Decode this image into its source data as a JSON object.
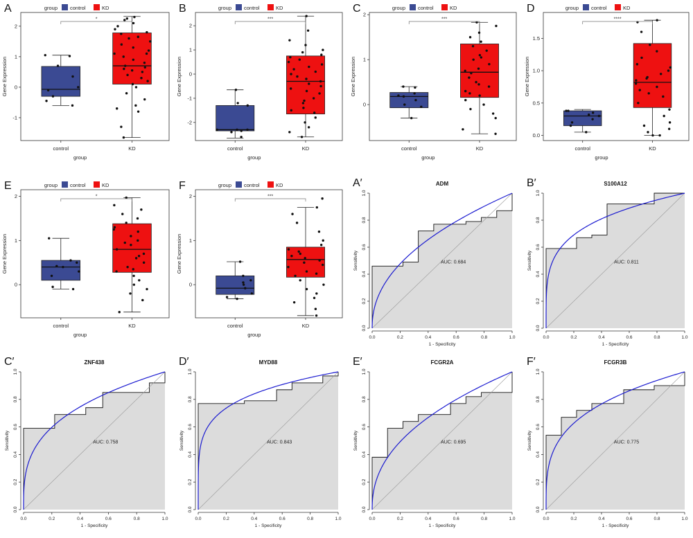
{
  "legend": {
    "title": "group",
    "items": [
      {
        "label": "control",
        "color": "#3B4A93"
      },
      {
        "label": "KD",
        "color": "#EE1111"
      }
    ]
  },
  "chart_data": [
    {
      "id": "A",
      "panel_label": "A",
      "type": "box",
      "title": "",
      "xlabel": "group",
      "ylabel": "Gene Expression",
      "categories": [
        "control",
        "KD"
      ],
      "ylim": [
        -1.75,
        2.45
      ],
      "yticks": [
        -1,
        0,
        1,
        2
      ],
      "significance": "*",
      "boxes": [
        {
          "min": -0.6,
          "q1": -0.3,
          "median": -0.07,
          "q3": 0.68,
          "max": 1.05,
          "color": "#3B4A93"
        },
        {
          "min": -1.65,
          "q1": 0.1,
          "median": 0.7,
          "q3": 1.78,
          "max": 2.32,
          "color": "#EE1111"
        }
      ],
      "points": [
        [
          1.02,
          1.05,
          0.7,
          0.35,
          -0.1,
          -0.6,
          -0.45,
          0.0,
          -0.3
        ],
        [
          2.3,
          2.25,
          2.2,
          2.1,
          2.0,
          1.9,
          1.8,
          1.75,
          1.6,
          1.5,
          1.4,
          1.3,
          1.2,
          1.1,
          1.0,
          0.9,
          0.8,
          0.7,
          0.65,
          0.6,
          0.5,
          0.4,
          0.3,
          0.2,
          0.1,
          0.0,
          -0.2,
          -0.4,
          -0.6,
          -0.7,
          -0.8,
          -1.3,
          -1.65,
          1.65,
          1.1,
          0.55
        ]
      ]
    },
    {
      "id": "B",
      "panel_label": "B",
      "type": "box",
      "title": "",
      "xlabel": "group",
      "ylabel": "Gene Expression",
      "categories": [
        "control",
        "KD"
      ],
      "ylim": [
        -2.75,
        2.55
      ],
      "yticks": [
        -2,
        -1,
        0,
        1,
        2
      ],
      "significance": "***",
      "boxes": [
        {
          "min": -2.65,
          "q1": -2.35,
          "median": -2.3,
          "q3": -1.3,
          "max": -0.65,
          "color": "#3B4A93"
        },
        {
          "min": -2.6,
          "q1": -1.65,
          "median": -0.3,
          "q3": 0.75,
          "max": 2.4,
          "color": "#EE1111"
        }
      ],
      "points": [
        [
          -0.65,
          -1.2,
          -1.3,
          -2.3,
          -2.35,
          -2.6,
          -2.3,
          -2.3,
          -2.4
        ],
        [
          2.4,
          1.8,
          1.4,
          1.2,
          1.0,
          0.9,
          0.8,
          0.7,
          0.6,
          0.5,
          0.3,
          0.2,
          0.0,
          -0.1,
          -0.2,
          -0.3,
          -0.4,
          -0.5,
          -0.6,
          -0.8,
          -1.0,
          -1.2,
          -1.4,
          -1.5,
          -1.6,
          -1.8,
          -2.0,
          -2.2,
          -2.4,
          -2.6,
          0.4,
          -0.7,
          -1.1,
          0.1
        ]
      ]
    },
    {
      "id": "C",
      "panel_label": "C",
      "type": "box",
      "title": "",
      "xlabel": "group",
      "ylabel": "Gene Expression",
      "categories": [
        "control",
        "KD"
      ],
      "ylim": [
        -0.8,
        2.05
      ],
      "yticks": [
        0,
        1,
        2
      ],
      "significance": "***",
      "boxes": [
        {
          "min": -0.3,
          "q1": -0.07,
          "median": 0.18,
          "q3": 0.27,
          "max": 0.4,
          "color": "#3B4A93"
        },
        {
          "min": -0.65,
          "q1": 0.16,
          "median": 0.72,
          "q3": 1.35,
          "max": 1.83,
          "color": "#EE1111"
        }
      ],
      "points": [
        [
          0.4,
          0.38,
          0.2,
          0.18,
          0.1,
          -0.05,
          -0.3,
          0.25,
          0.0
        ],
        [
          1.83,
          1.75,
          1.6,
          1.5,
          1.4,
          1.3,
          1.2,
          1.1,
          1.0,
          0.9,
          0.8,
          0.7,
          0.6,
          0.5,
          0.4,
          0.3,
          0.2,
          0.1,
          0.0,
          -0.1,
          -0.2,
          -0.3,
          -0.55,
          -0.65,
          1.05,
          0.75,
          0.45,
          0.25
        ]
      ]
    },
    {
      "id": "D",
      "panel_label": "D",
      "type": "box",
      "title": "",
      "xlabel": "group",
      "ylabel": "Gene Expression",
      "categories": [
        "control",
        "KD"
      ],
      "ylim": [
        -0.08,
        1.9
      ],
      "yticks": [
        0.0,
        0.5,
        1.0,
        1.5
      ],
      "ytick_labels": [
        "0.0",
        "0.5",
        "1.0",
        "1.5"
      ],
      "significance": "****",
      "boxes": [
        {
          "min": 0.05,
          "q1": 0.15,
          "median": 0.3,
          "q3": 0.38,
          "max": 0.4,
          "color": "#3B4A93"
        },
        {
          "min": 0.0,
          "q1": 0.43,
          "median": 0.82,
          "q3": 1.42,
          "max": 1.78,
          "color": "#EE1111"
        }
      ],
      "points": [
        [
          0.38,
          0.38,
          0.35,
          0.3,
          0.25,
          0.2,
          0.15,
          0.05,
          0.32
        ],
        [
          1.78,
          1.75,
          1.6,
          1.4,
          1.3,
          1.2,
          1.1,
          1.0,
          0.95,
          0.9,
          0.85,
          0.8,
          0.75,
          0.7,
          0.65,
          0.6,
          0.5,
          0.4,
          0.3,
          0.2,
          0.15,
          0.1,
          0.05,
          0.0,
          0.0,
          1.05,
          0.88
        ]
      ]
    },
    {
      "id": "E",
      "panel_label": "E",
      "type": "box",
      "title": "",
      "xlabel": "group",
      "ylabel": "Gene Expression",
      "categories": [
        "control",
        "KD"
      ],
      "ylim": [
        -0.75,
        2.15
      ],
      "yticks": [
        0,
        1,
        2
      ],
      "significance": "*",
      "boxes": [
        {
          "min": -0.1,
          "q1": 0.1,
          "median": 0.4,
          "q3": 0.55,
          "max": 1.05,
          "color": "#3B4A93"
        },
        {
          "min": -0.62,
          "q1": 0.28,
          "median": 0.8,
          "q3": 1.38,
          "max": 1.97,
          "color": "#EE1111"
        }
      ],
      "points": [
        [
          1.05,
          0.55,
          0.42,
          0.4,
          0.3,
          0.2,
          -0.05,
          -0.1,
          0.5
        ],
        [
          1.97,
          1.8,
          1.7,
          1.6,
          1.5,
          1.4,
          1.3,
          1.2,
          1.1,
          1.0,
          0.9,
          0.8,
          0.7,
          0.6,
          0.5,
          0.4,
          0.3,
          0.2,
          0.1,
          0.0,
          -0.1,
          -0.2,
          -0.35,
          -0.62,
          1.25,
          0.95,
          0.65,
          0.35
        ]
      ]
    },
    {
      "id": "F",
      "panel_label": "F",
      "type": "box",
      "title": "",
      "xlabel": "group",
      "ylabel": "Gene Expression",
      "categories": [
        "control",
        "KD"
      ],
      "ylim": [
        -0.75,
        2.15
      ],
      "yticks": [
        0,
        1,
        2
      ],
      "significance": "***",
      "boxes": [
        {
          "min": -0.32,
          "q1": -0.22,
          "median": -0.08,
          "q3": 0.2,
          "max": 0.52,
          "color": "#3B4A93"
        },
        {
          "min": -0.7,
          "q1": 0.17,
          "median": 0.57,
          "q3": 0.85,
          "max": 1.75,
          "color": "#EE1111"
        }
      ],
      "points": [
        [
          0.52,
          0.2,
          0.1,
          0.0,
          -0.08,
          -0.2,
          -0.28,
          -0.32,
          0.05
        ],
        [
          1.95,
          1.75,
          1.6,
          1.4,
          1.2,
          1.0,
          0.9,
          0.8,
          0.7,
          0.6,
          0.55,
          0.5,
          0.4,
          0.3,
          0.2,
          0.1,
          0.0,
          -0.1,
          -0.2,
          -0.3,
          -0.4,
          -0.55,
          -0.7,
          0.75,
          0.45,
          0.65,
          0.25
        ]
      ]
    },
    {
      "id": "A2",
      "panel_label": "A′",
      "type": "roc",
      "title": "ADM",
      "xlabel": "1 - Specificity",
      "ylabel": "Sensitivity",
      "auc_label": "AUC: 0.684",
      "ticks": [
        0.0,
        0.2,
        0.4,
        0.6,
        0.8,
        1.0
      ],
      "tick_labels": [
        "0.0",
        "0.2",
        "0.4",
        "0.6",
        "0.8",
        "1.0"
      ],
      "step": [
        [
          0,
          0
        ],
        [
          0,
          0.46
        ],
        [
          0.22,
          0.46
        ],
        [
          0.22,
          0.49
        ],
        [
          0.33,
          0.49
        ],
        [
          0.33,
          0.72
        ],
        [
          0.44,
          0.72
        ],
        [
          0.44,
          0.77
        ],
        [
          0.67,
          0.77
        ],
        [
          0.67,
          0.79
        ],
        [
          0.78,
          0.79
        ],
        [
          0.78,
          0.82
        ],
        [
          0.89,
          0.82
        ],
        [
          0.89,
          0.87
        ],
        [
          1,
          0.87
        ],
        [
          1,
          1
        ]
      ],
      "smooth_k": 0.46
    },
    {
      "id": "B2",
      "panel_label": "B′",
      "type": "roc",
      "title": "S100A12",
      "xlabel": "1 - Specificity",
      "ylabel": "Sensitivity",
      "auc_label": "AUC: 0.811",
      "ticks": [
        0.0,
        0.2,
        0.4,
        0.6,
        0.8,
        1.0
      ],
      "tick_labels": [
        "0.0",
        "0.2",
        "0.4",
        "0.6",
        "0.8",
        "1.0"
      ],
      "step": [
        [
          0,
          0
        ],
        [
          0,
          0.59
        ],
        [
          0.22,
          0.59
        ],
        [
          0.22,
          0.67
        ],
        [
          0.33,
          0.67
        ],
        [
          0.33,
          0.69
        ],
        [
          0.44,
          0.69
        ],
        [
          0.44,
          0.92
        ],
        [
          0.78,
          0.92
        ],
        [
          0.78,
          1
        ],
        [
          1,
          1
        ]
      ],
      "smooth_k": 0.23
    },
    {
      "id": "C2",
      "panel_label": "C′",
      "type": "roc",
      "title": "ZNF438",
      "xlabel": "1 - Specificity",
      "ylabel": "Sensitivity",
      "auc_label": "AUC: 0.758",
      "ticks": [
        0.0,
        0.2,
        0.4,
        0.6,
        0.8,
        1.0
      ],
      "tick_labels": [
        "0.0",
        "0.2",
        "0.4",
        "0.6",
        "0.8",
        "1.0"
      ],
      "step": [
        [
          0,
          0
        ],
        [
          0,
          0.59
        ],
        [
          0.22,
          0.59
        ],
        [
          0.22,
          0.69
        ],
        [
          0.44,
          0.69
        ],
        [
          0.44,
          0.74
        ],
        [
          0.56,
          0.74
        ],
        [
          0.56,
          0.85
        ],
        [
          0.89,
          0.85
        ],
        [
          0.89,
          0.92
        ],
        [
          1,
          0.92
        ],
        [
          1,
          1
        ]
      ],
      "smooth_k": 0.32
    },
    {
      "id": "D2",
      "panel_label": "D′",
      "type": "roc",
      "title": "MYD88",
      "xlabel": "1 - Specificity",
      "ylabel": "Sensitivity",
      "auc_label": "AUC: 0.843",
      "ticks": [
        0.0,
        0.2,
        0.4,
        0.6,
        0.8,
        1.0
      ],
      "tick_labels": [
        "0.0",
        "0.2",
        "0.4",
        "0.6",
        "0.8",
        "1.0"
      ],
      "step": [
        [
          0,
          0
        ],
        [
          0,
          0.77
        ],
        [
          0.33,
          0.77
        ],
        [
          0.33,
          0.79
        ],
        [
          0.56,
          0.79
        ],
        [
          0.56,
          0.87
        ],
        [
          0.67,
          0.87
        ],
        [
          0.67,
          0.92
        ],
        [
          0.89,
          0.92
        ],
        [
          0.89,
          0.97
        ],
        [
          1,
          0.97
        ],
        [
          1,
          1
        ]
      ],
      "smooth_k": 0.19
    },
    {
      "id": "E2",
      "panel_label": "E′",
      "type": "roc",
      "title": "FCGR2A",
      "xlabel": "1 - Specificity",
      "ylabel": "Sensitivity",
      "auc_label": "AUC: 0.695",
      "ticks": [
        0.0,
        0.2,
        0.4,
        0.6,
        0.8,
        1.0
      ],
      "tick_labels": [
        "0.0",
        "0.2",
        "0.4",
        "0.6",
        "0.8",
        "1.0"
      ],
      "step": [
        [
          0,
          0
        ],
        [
          0,
          0.38
        ],
        [
          0.11,
          0.38
        ],
        [
          0.11,
          0.59
        ],
        [
          0.22,
          0.59
        ],
        [
          0.22,
          0.64
        ],
        [
          0.33,
          0.64
        ],
        [
          0.33,
          0.69
        ],
        [
          0.56,
          0.69
        ],
        [
          0.56,
          0.77
        ],
        [
          0.67,
          0.77
        ],
        [
          0.67,
          0.82
        ],
        [
          0.78,
          0.82
        ],
        [
          0.78,
          0.85
        ],
        [
          1,
          0.85
        ],
        [
          1,
          1
        ]
      ],
      "smooth_k": 0.44
    },
    {
      "id": "F2",
      "panel_label": "F′",
      "type": "roc",
      "title": "FCGR3B",
      "xlabel": "1 - Specificity",
      "ylabel": "Sensitivity",
      "auc_label": "AUC: 0.775",
      "ticks": [
        0.0,
        0.2,
        0.4,
        0.6,
        0.8,
        1.0
      ],
      "tick_labels": [
        "0.0",
        "0.2",
        "0.4",
        "0.6",
        "0.8",
        "1.0"
      ],
      "step": [
        [
          0,
          0
        ],
        [
          0,
          0.54
        ],
        [
          0.11,
          0.54
        ],
        [
          0.11,
          0.67
        ],
        [
          0.22,
          0.67
        ],
        [
          0.22,
          0.72
        ],
        [
          0.33,
          0.72
        ],
        [
          0.33,
          0.77
        ],
        [
          0.56,
          0.77
        ],
        [
          0.56,
          0.87
        ],
        [
          0.78,
          0.87
        ],
        [
          0.78,
          0.9
        ],
        [
          1,
          0.9
        ],
        [
          1,
          1
        ]
      ],
      "smooth_k": 0.29
    }
  ]
}
